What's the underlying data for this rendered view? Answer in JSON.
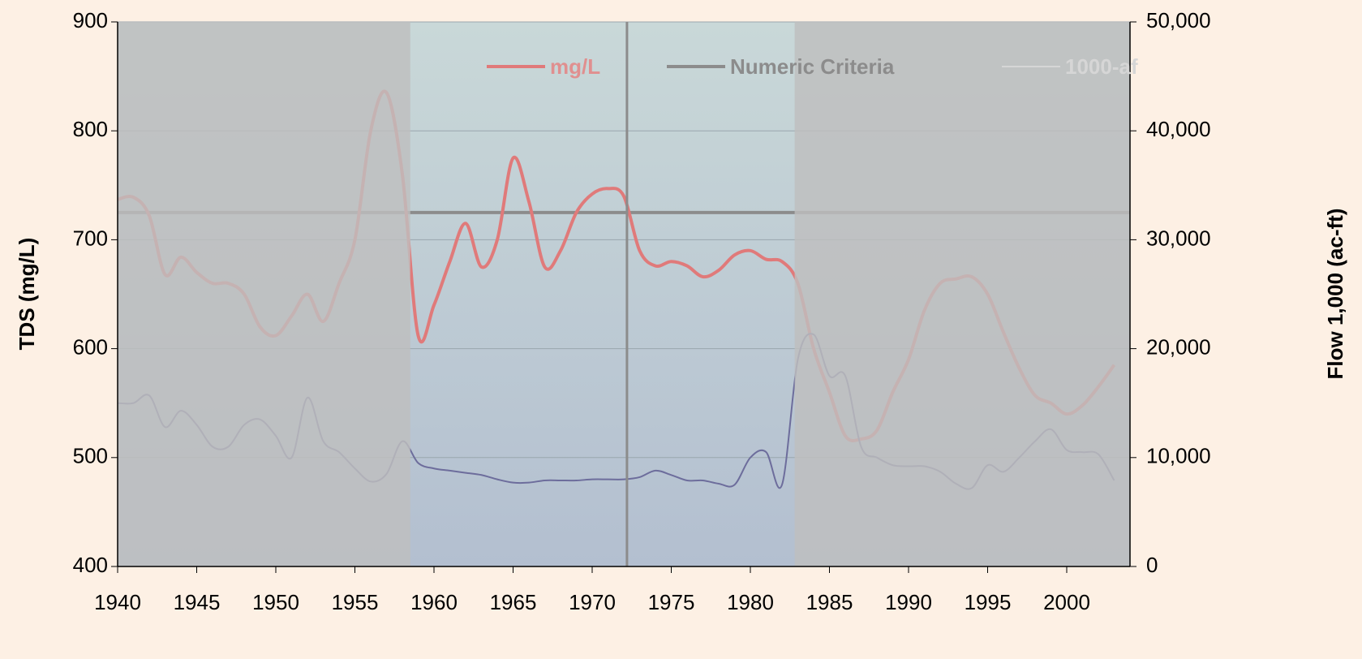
{
  "chart_data": {
    "type": "line",
    "y_label": "TDS (mg/L)",
    "y2_label": "Flow 1,000 (ac-ft)",
    "x": [
      1940,
      1941,
      1942,
      1943,
      1944,
      1945,
      1946,
      1947,
      1948,
      1949,
      1950,
      1951,
      1952,
      1953,
      1954,
      1955,
      1956,
      1957,
      1958,
      1959,
      1960,
      1961,
      1962,
      1963,
      1964,
      1965,
      1966,
      1967,
      1968,
      1969,
      1970,
      1971,
      1972,
      1973,
      1974,
      1975,
      1976,
      1977,
      1978,
      1979,
      1980,
      1981,
      1982,
      1983,
      1984,
      1985,
      1986,
      1987,
      1988,
      1989,
      1990,
      1991,
      1992,
      1993,
      1994,
      1995,
      1996,
      1997,
      1998,
      1999,
      2000,
      2001,
      2002,
      2003
    ],
    "series": [
      {
        "name": "mg/L",
        "color": "#e07a7a",
        "values": [
          737,
          739,
          722,
          668,
          684,
          670,
          660,
          660,
          650,
          620,
          612,
          630,
          650,
          625,
          660,
          700,
          800,
          835,
          760,
          612,
          640,
          680,
          715,
          675,
          700,
          775,
          735,
          675,
          690,
          725,
          742,
          747,
          740,
          690,
          676,
          680,
          676,
          666,
          672,
          686,
          690,
          682,
          680,
          660,
          600,
          560,
          520,
          517,
          525,
          560,
          590,
          635,
          660,
          664,
          666,
          650,
          615,
          582,
          557,
          550,
          540,
          548,
          565,
          585
        ]
      },
      {
        "name": "1000-af",
        "color": "#6d6d9c",
        "axis": "y2",
        "values": [
          15000,
          15000,
          15700,
          12800,
          14300,
          13000,
          11000,
          11000,
          13000,
          13500,
          12000,
          10000,
          15500,
          11500,
          10500,
          9000,
          7800,
          8500,
          11500,
          9500,
          9000,
          8800,
          8600,
          8400,
          8000,
          7700,
          7700,
          7900,
          7900,
          7900,
          8000,
          8000,
          8000,
          8200,
          8800,
          8400,
          7900,
          7900,
          7600,
          7500,
          10000,
          10500,
          7500,
          19000,
          21300,
          17500,
          17500,
          11000,
          10000,
          9300,
          9200,
          9200,
          8700,
          7600,
          7200,
          9300,
          8700,
          10000,
          11500,
          12600,
          10700,
          10500,
          10300,
          7900
        ]
      }
    ],
    "hlines": [
      {
        "name": "Numeric Criteria",
        "color": "#8c8c8c",
        "value": 725
      }
    ],
    "shaded_periods": [
      [
        1940,
        1958.5
      ],
      [
        1982.8,
        2004
      ]
    ],
    "vlines": [
      1972.2
    ],
    "xlim": [
      1940,
      2004
    ],
    "xticks": [
      1940,
      1945,
      1950,
      1955,
      1960,
      1965,
      1970,
      1975,
      1980,
      1985,
      1990,
      1995,
      2000
    ],
    "ylim": [
      400,
      900
    ],
    "yticks": [
      400,
      500,
      600,
      700,
      800,
      900
    ],
    "y2lim": [
      0,
      50000
    ],
    "y2ticks": [
      0,
      {
        "value": 10000,
        "label": "10,000"
      },
      {
        "value": 20000,
        "label": "20,000"
      },
      {
        "value": 30000,
        "label": "30,000"
      },
      {
        "value": 40000,
        "label": "40,000"
      },
      {
        "value": 50000,
        "label": "50,000"
      }
    ],
    "grid": true,
    "legend": "top"
  }
}
